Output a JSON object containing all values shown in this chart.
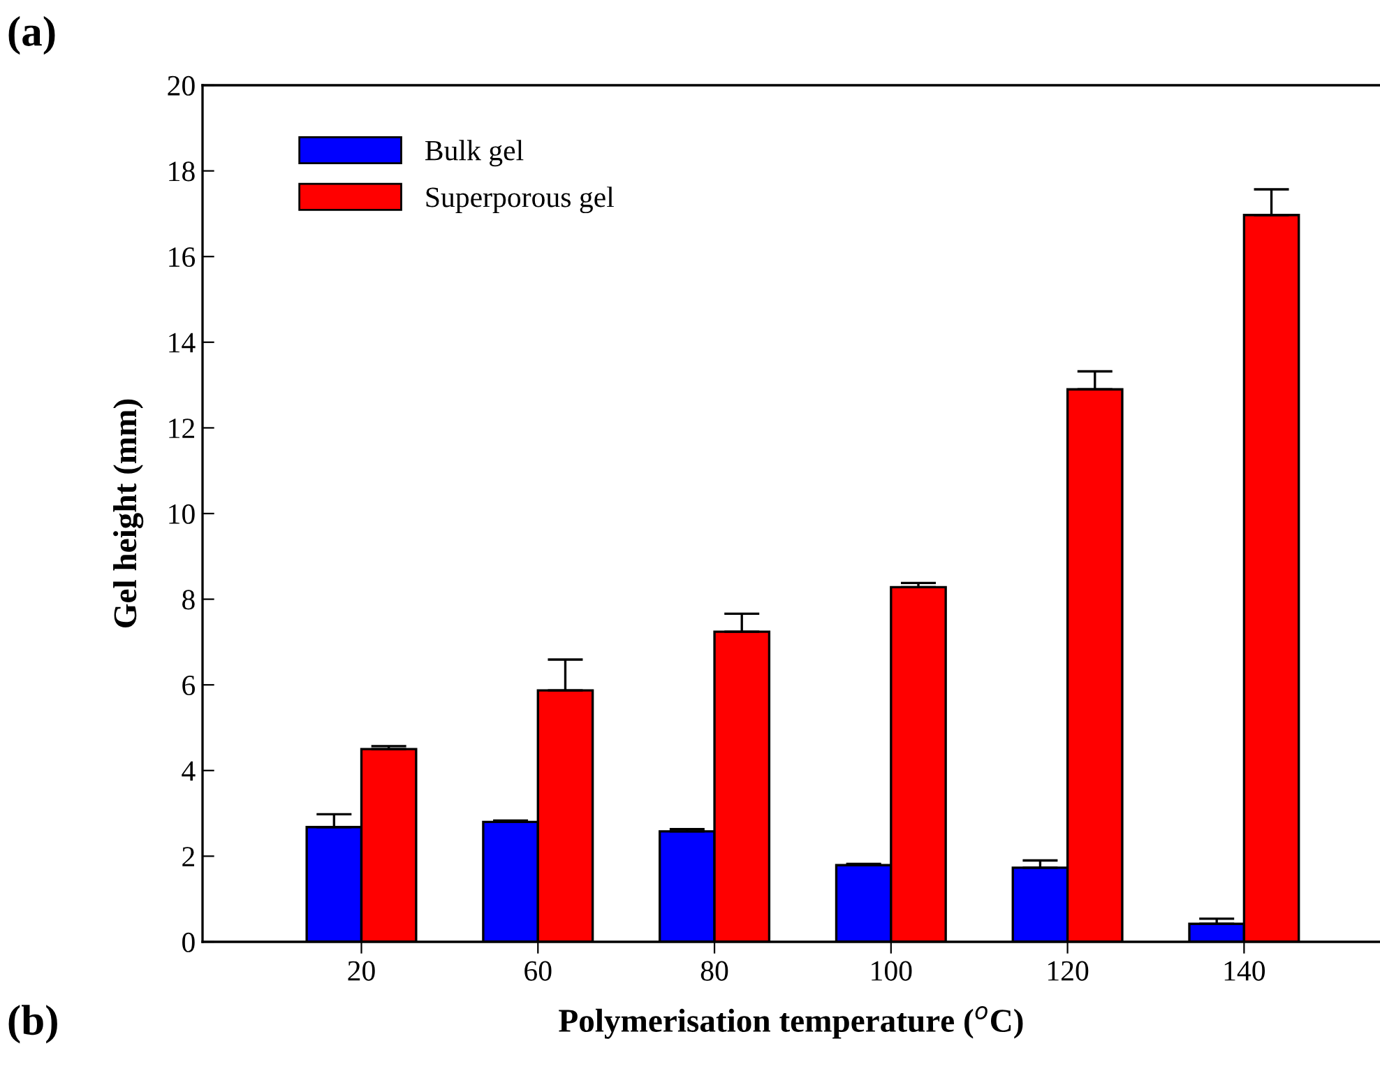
{
  "chart_data": {
    "type": "bar",
    "xlabel": "Polymerisation temperature ($^{o}$C)",
    "ylabel": "Gel height (mm)",
    "categories": [
      "20",
      "60",
      "80",
      "100",
      "120",
      "140"
    ],
    "series": [
      {
        "name": "Bulk gel",
        "color": "#0000ff",
        "values": [
          2.68,
          2.8,
          2.58,
          1.79,
          1.73,
          0.42
        ],
        "errors": [
          0.3,
          0.03,
          0.05,
          0.03,
          0.17,
          0.12
        ]
      },
      {
        "name": "Superporous gel",
        "color": "#ff0000",
        "values": [
          4.5,
          5.87,
          7.24,
          8.28,
          12.9,
          16.97
        ],
        "errors": [
          0.07,
          0.72,
          0.42,
          0.1,
          0.42,
          0.6
        ]
      }
    ],
    "ylim": [
      0,
      20
    ],
    "yticks": [
      0,
      2,
      4,
      6,
      8,
      10,
      12,
      14,
      16,
      18,
      20
    ],
    "grid": false,
    "legend": "top left",
    "annotations": [
      "(a)",
      "(b)"
    ]
  }
}
